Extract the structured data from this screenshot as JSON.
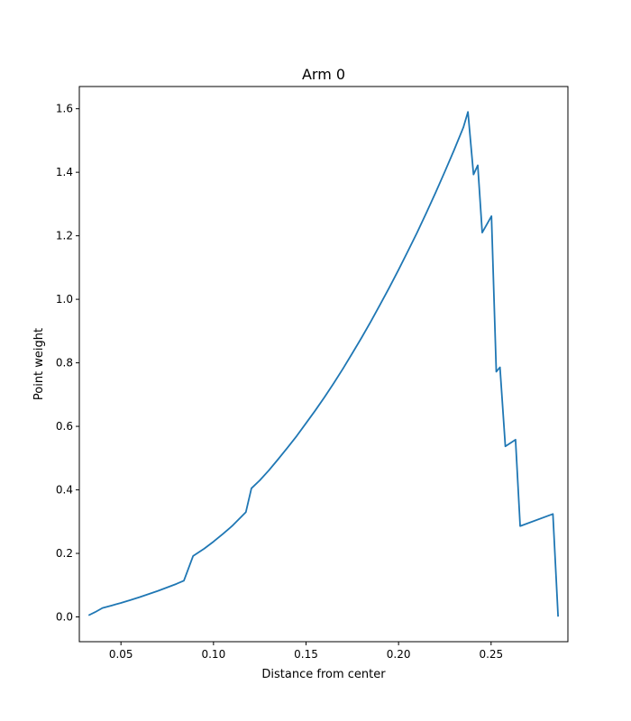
{
  "chart_data": {
    "type": "line",
    "title": "Arm 0",
    "xlabel": "Distance from center",
    "ylabel": "Point weight",
    "xlim": [
      0.0275,
      0.2915
    ],
    "ylim": [
      -0.078,
      1.67
    ],
    "x_ticks": [
      0.05,
      0.1,
      0.15,
      0.2,
      0.25
    ],
    "x_tick_labels": [
      "0.05",
      "0.10",
      "0.15",
      "0.20",
      "0.25"
    ],
    "y_ticks": [
      0.0,
      0.2,
      0.4,
      0.6,
      0.8,
      1.0,
      1.2,
      1.4,
      1.6
    ],
    "y_tick_labels": [
      "0.0",
      "0.2",
      "0.4",
      "0.6",
      "0.8",
      "1.0",
      "1.2",
      "1.4",
      "1.6"
    ],
    "grid": false,
    "series": [
      {
        "color": "#1f77b4",
        "points": [
          [
            0.0325,
            0.005
          ],
          [
            0.036,
            0.015
          ],
          [
            0.04,
            0.028
          ],
          [
            0.045,
            0.036
          ],
          [
            0.05,
            0.044
          ],
          [
            0.055,
            0.053
          ],
          [
            0.06,
            0.062
          ],
          [
            0.065,
            0.072
          ],
          [
            0.07,
            0.082
          ],
          [
            0.075,
            0.093
          ],
          [
            0.08,
            0.104
          ],
          [
            0.084,
            0.114
          ],
          [
            0.089,
            0.192
          ],
          [
            0.095,
            0.215
          ],
          [
            0.1,
            0.237
          ],
          [
            0.105,
            0.261
          ],
          [
            0.11,
            0.286
          ],
          [
            0.1175,
            0.33
          ],
          [
            0.1205,
            0.405
          ],
          [
            0.125,
            0.43
          ],
          [
            0.13,
            0.462
          ],
          [
            0.135,
            0.497
          ],
          [
            0.14,
            0.533
          ],
          [
            0.145,
            0.57
          ],
          [
            0.15,
            0.61
          ],
          [
            0.155,
            0.65
          ],
          [
            0.16,
            0.692
          ],
          [
            0.165,
            0.736
          ],
          [
            0.17,
            0.782
          ],
          [
            0.175,
            0.83
          ],
          [
            0.18,
            0.879
          ],
          [
            0.185,
            0.93
          ],
          [
            0.19,
            0.983
          ],
          [
            0.195,
            1.037
          ],
          [
            0.2,
            1.093
          ],
          [
            0.205,
            1.151
          ],
          [
            0.21,
            1.21
          ],
          [
            0.215,
            1.272
          ],
          [
            0.22,
            1.336
          ],
          [
            0.225,
            1.402
          ],
          [
            0.23,
            1.47
          ],
          [
            0.235,
            1.541
          ],
          [
            0.2375,
            1.59
          ],
          [
            0.2405,
            1.393
          ],
          [
            0.2428,
            1.422
          ],
          [
            0.2452,
            1.21
          ],
          [
            0.2502,
            1.262
          ],
          [
            0.2528,
            0.772
          ],
          [
            0.2548,
            0.786
          ],
          [
            0.2577,
            0.537
          ],
          [
            0.2632,
            0.558
          ],
          [
            0.2657,
            0.286
          ],
          [
            0.2834,
            0.324
          ],
          [
            0.2862,
            0.001
          ]
        ]
      }
    ]
  }
}
